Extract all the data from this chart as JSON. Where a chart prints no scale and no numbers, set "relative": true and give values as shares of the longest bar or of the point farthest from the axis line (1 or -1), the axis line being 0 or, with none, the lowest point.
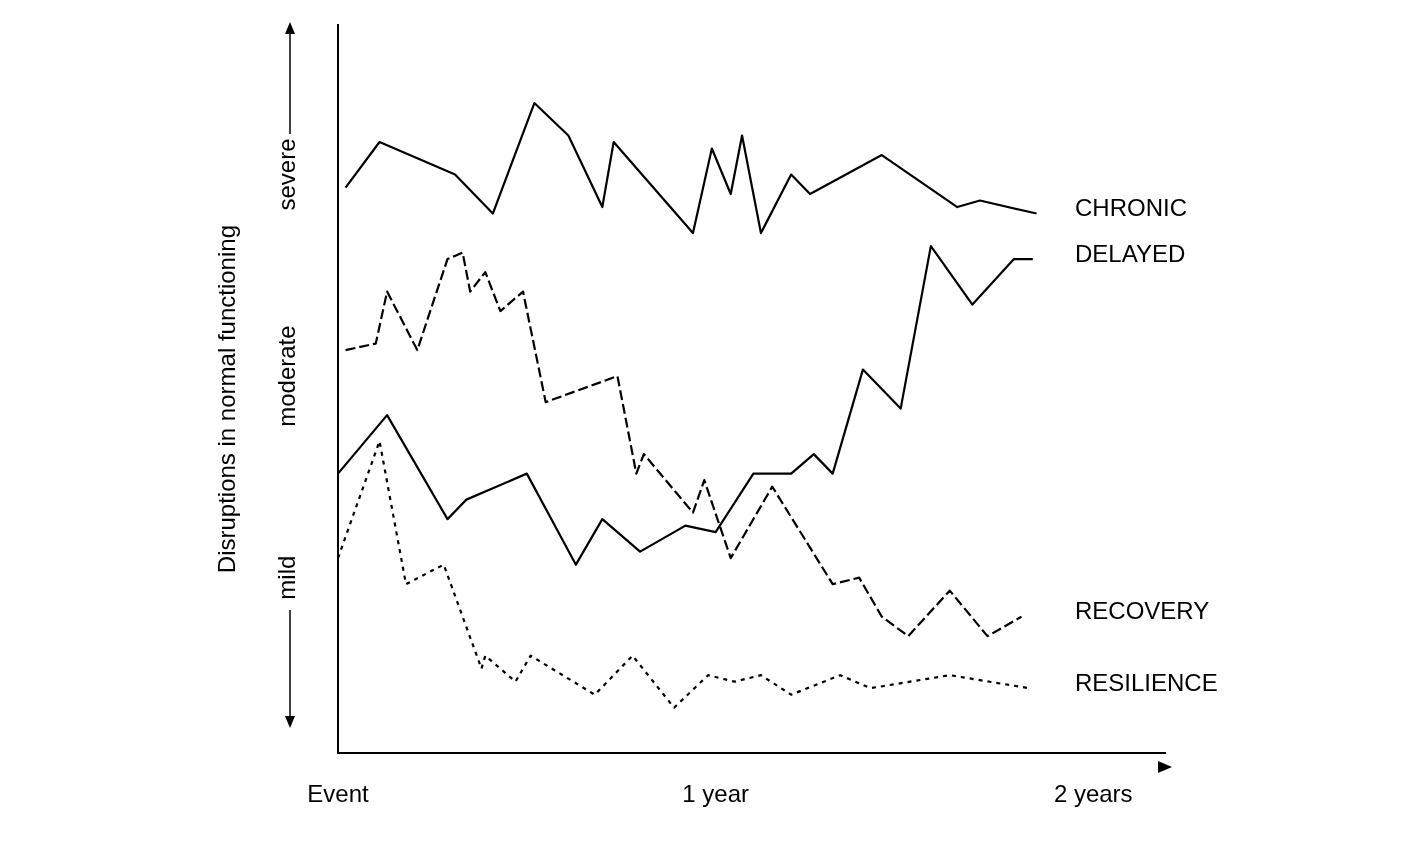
{
  "chart_data": {
    "type": "line",
    "relative": true,
    "ylabel": "Disruptions in normal functioning",
    "annotations": [
      "mild",
      "moderate",
      "severe"
    ],
    "xlim": [
      0,
      2.19
    ],
    "xticks": [
      {
        "value": 0,
        "label": "Event"
      },
      {
        "value": 1,
        "label": "1 year"
      },
      {
        "value": 2,
        "label": "2 years"
      }
    ],
    "grid": false,
    "legend": false,
    "marker": "none",
    "series": [
      {
        "name": "CHRONIC",
        "color": "#000000",
        "line_style": "solid",
        "x": [
          0.02,
          0.11,
          0.31,
          0.41,
          0.52,
          0.61,
          0.7,
          0.73,
          0.94,
          0.99,
          1.04,
          1.07,
          1.12,
          1.2,
          1.25,
          1.44,
          1.64,
          1.7,
          1.85
        ],
        "values": [
          0.87,
          0.94,
          0.89,
          0.83,
          1.0,
          0.95,
          0.84,
          0.94,
          0.8,
          0.93,
          0.86,
          0.95,
          0.8,
          0.89,
          0.86,
          0.92,
          0.84,
          0.85,
          0.83
        ]
      },
      {
        "name": "DELAYED",
        "color": "#000000",
        "line_style": "solid",
        "x": [
          0,
          0.13,
          0.29,
          0.34,
          0.5,
          0.63,
          0.7,
          0.8,
          0.92,
          1.0,
          1.1,
          1.2,
          1.26,
          1.31,
          1.39,
          1.49,
          1.57,
          1.68,
          1.79,
          1.84
        ],
        "values": [
          0.43,
          0.52,
          0.36,
          0.39,
          0.43,
          0.29,
          0.36,
          0.31,
          0.35,
          0.34,
          0.43,
          0.43,
          0.46,
          0.43,
          0.59,
          0.53,
          0.78,
          0.69,
          0.76,
          0.76
        ]
      },
      {
        "name": "RECOVERY",
        "color": "#000000",
        "line_style": "dashed",
        "x": [
          0.02,
          0.1,
          0.13,
          0.21,
          0.29,
          0.33,
          0.35,
          0.39,
          0.43,
          0.49,
          0.55,
          0.74,
          0.79,
          0.81,
          0.94,
          0.97,
          1.04,
          1.15,
          1.31,
          1.38,
          1.44,
          1.51,
          1.62,
          1.72,
          1.81
        ],
        "values": [
          0.62,
          0.63,
          0.71,
          0.62,
          0.76,
          0.77,
          0.71,
          0.74,
          0.68,
          0.71,
          0.54,
          0.58,
          0.43,
          0.46,
          0.37,
          0.42,
          0.3,
          0.41,
          0.26,
          0.27,
          0.21,
          0.18,
          0.25,
          0.18,
          0.21
        ]
      },
      {
        "name": "RESILIENCE",
        "color": "#000000",
        "line_style": "dotted",
        "x": [
          0,
          0.11,
          0.18,
          0.28,
          0.38,
          0.39,
          0.47,
          0.51,
          0.68,
          0.78,
          0.89,
          0.98,
          1.05,
          1.12,
          1.2,
          1.33,
          1.41,
          1.62,
          1.83
        ],
        "values": [
          0.3,
          0.48,
          0.26,
          0.29,
          0.13,
          0.15,
          0.11,
          0.15,
          0.09,
          0.15,
          0.07,
          0.12,
          0.11,
          0.12,
          0.09,
          0.12,
          0.1,
          0.12,
          0.1
        ]
      }
    ]
  }
}
